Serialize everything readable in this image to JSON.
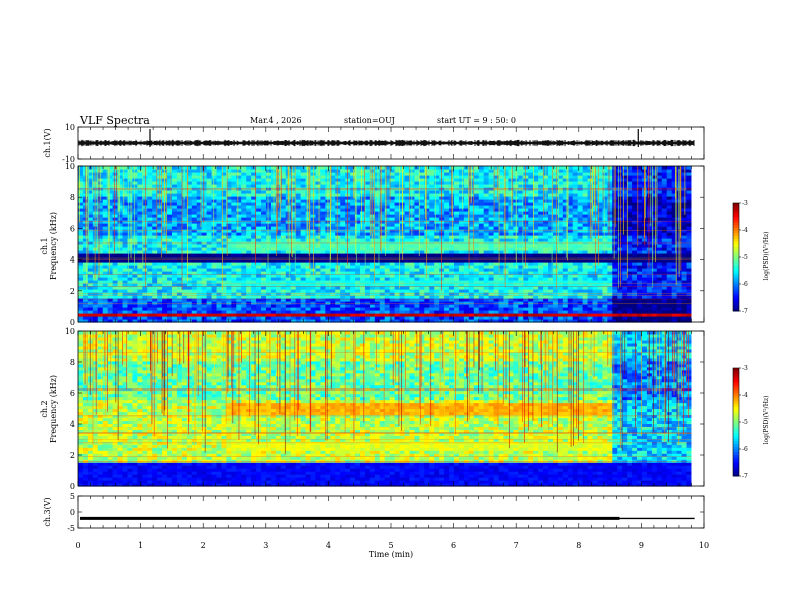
{
  "chart_data": {
    "type": "heatmap",
    "title": "VLF Spectra",
    "header": {
      "date": "Mar.4 , 2026",
      "station": "station=OUJ",
      "start_ut": "start UT = 9 : 50: 0"
    },
    "xlabel": "Time (min)",
    "xlim": [
      0,
      10
    ],
    "x_ticks": [
      "0",
      "1",
      "2",
      "3",
      "4",
      "5",
      "6",
      "7",
      "8",
      "9",
      "10"
    ],
    "panels": [
      {
        "id": "ch1-waveform",
        "type": "line",
        "ylabel": "ch.1(V)",
        "ylim": [
          -10,
          10
        ],
        "y_ticks": [
          "10",
          "-10"
        ],
        "baseline": 0,
        "spikes_min": [
          1.15,
          8.95
        ]
      },
      {
        "id": "ch1-spectrogram",
        "type": "heatmap",
        "ylabel": "ch.1\nFrequency (kHz)",
        "ylabel_lines": [
          "ch.1",
          "Frequency (kHz)"
        ],
        "ylim": [
          0,
          10
        ],
        "y_ticks": [
          "0",
          "2",
          "4",
          "6",
          "8",
          "10"
        ],
        "colorbar": {
          "label": "log(PSD)(V²/Hz)",
          "range": [
            -7,
            -3
          ],
          "ticks": [
            "-3",
            "-4",
            "-5",
            "-6",
            "-7"
          ]
        },
        "data_end_min": 9.8,
        "bands_khz": [
          {
            "from": 4.6,
            "to": 5.1,
            "level": -5.2,
            "t_start": 2.35,
            "t_end": 8.5
          },
          {
            "from": 2.2,
            "to": 2.6,
            "level": -5.4,
            "t_start": 2.35,
            "t_end": 8.5
          },
          {
            "from": 3.8,
            "to": 4.4,
            "level": -7.0,
            "t_start": 0,
            "t_end": 9.8
          },
          {
            "from": 0.3,
            "to": 0.45,
            "level": -3.3,
            "t_start": 0,
            "t_end": 9.8
          }
        ]
      },
      {
        "id": "ch2-spectrogram",
        "type": "heatmap",
        "ylabel": "ch.2\nFrequency (kHz)",
        "ylabel_lines": [
          "ch.2",
          "Frequency (kHz)"
        ],
        "ylim": [
          0,
          10
        ],
        "y_ticks": [
          "0",
          "2",
          "4",
          "6",
          "8",
          "10"
        ],
        "colorbar": {
          "label": "log(PSD)(V²/Hz)",
          "range": [
            -7,
            -3
          ],
          "ticks": [
            "-3",
            "-4",
            "-5",
            "-6",
            "-7"
          ]
        },
        "data_end_min": 9.8,
        "bands_khz": [
          {
            "from": 4.6,
            "to": 5.2,
            "level": -4.2,
            "t_start": 2.35,
            "t_end": 8.5
          },
          {
            "from": 2.3,
            "to": 2.8,
            "level": -4.6,
            "t_start": 2.35,
            "t_end": 8.5
          },
          {
            "from": 0.0,
            "to": 1.5,
            "level": -6.5,
            "t_start": 0,
            "t_end": 9.8
          }
        ]
      },
      {
        "id": "ch3-waveform",
        "type": "line",
        "ylabel": "ch.3(V)",
        "ylim": [
          -5,
          5
        ],
        "y_ticks": [
          "5",
          "0",
          "-5"
        ],
        "level_v": -2,
        "level_step_min": 8.65
      }
    ]
  }
}
